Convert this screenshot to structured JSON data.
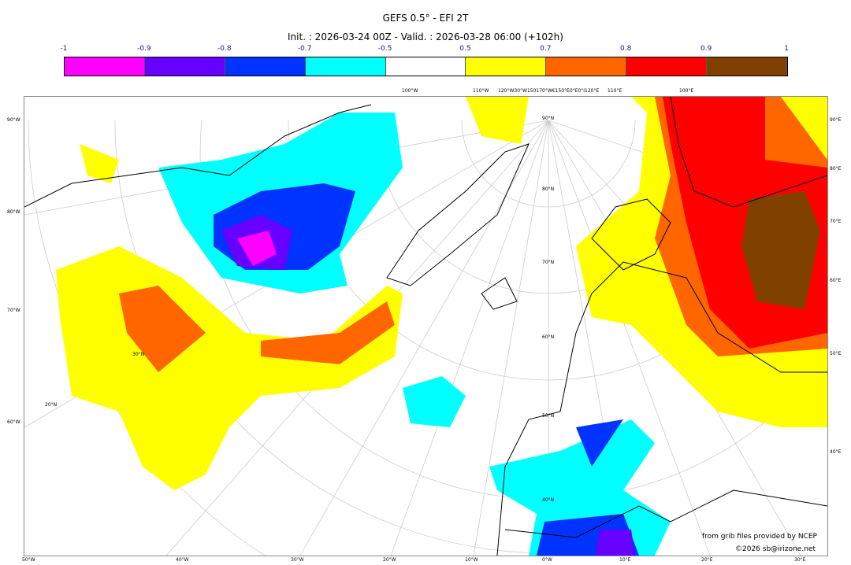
{
  "title": "GEFS 0.5° - EFI 2T",
  "subtitle": "Init. : 2026-03-24 00Z - Valid. : 2026-03-28 06:00 (+102h)",
  "colorbar": {
    "ticks": [
      "-1",
      "-0.9",
      "-0.8",
      "-0.7",
      "-0.5",
      "0.5",
      "0.7",
      "0.8",
      "0.9",
      "1"
    ],
    "colors": [
      "#ff00ff",
      "#6600ff",
      "#0033ff",
      "#00ffff",
      "#ffffff",
      "#ffff00",
      "#ff6600",
      "#ff0000",
      "#804000"
    ]
  },
  "axes": {
    "left": [
      "90°W",
      "80°W",
      "70°W",
      "60°W"
    ],
    "right": [
      "90°E",
      "80°E",
      "70°E",
      "60°E",
      "50°E",
      "40°E"
    ],
    "bottom": [
      "50°W",
      "40°W",
      "30°W",
      "20°W",
      "10°W",
      "0°W",
      "10°E",
      "20°E",
      "30°E"
    ],
    "top": [
      "100°W",
      "110°W",
      "120°W30°W150170°W€150°E0°E0°I120°E",
      "110°E",
      "100°E"
    ],
    "lat": [
      "90°N",
      "80°N",
      "70°N",
      "60°N",
      "50°N",
      "40°N",
      "30°N",
      "20°N"
    ]
  },
  "credits": {
    "source": "from grib files provided by NCEP",
    "copyright": "©2026 sb@irizone.net"
  }
}
